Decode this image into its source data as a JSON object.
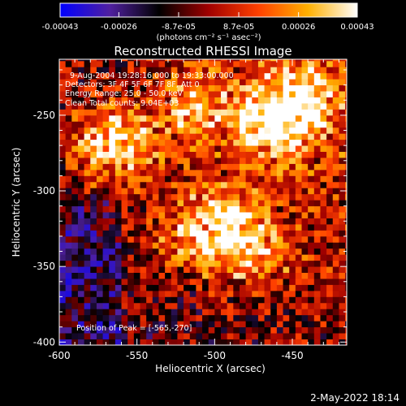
{
  "chart_data": {
    "type": "heatmap",
    "title": "Reconstructed RHESSI Image",
    "xlabel": "Heliocentric X (arcsec)",
    "ylabel": "Heliocentric Y (arcsec)",
    "xlim": [
      -600,
      -415
    ],
    "ylim": [
      -402,
      -213
    ],
    "x_ticks": [
      "-600",
      "-550",
      "-500",
      "-450"
    ],
    "y_ticks": [
      "-250",
      "-300",
      "-350",
      "-400"
    ],
    "x_tick_values": [
      -600,
      -550,
      -500,
      -450
    ],
    "y_tick_values": [
      -250,
      -300,
      -350,
      -400
    ],
    "colorbar": {
      "range": [
        -0.00043,
        0.00043
      ],
      "tick_labels": [
        "-0.00043",
        "-0.00026",
        "-8.7e-05",
        "8.7e-05",
        "0.00026",
        "0.00043"
      ],
      "tick_values": [
        -0.00043,
        -0.00026,
        -8.7e-05,
        8.7e-05,
        0.00026,
        0.00043
      ],
      "unit_label": "(photons cm⁻² s⁻¹ asec⁻²)",
      "colors": [
        "#0000ff",
        "#5020a0",
        "#000000",
        "#a00000",
        "#ff4000",
        "#ffb000",
        "#ffffff"
      ]
    },
    "annotations": [
      "9-Aug-2004 19:28:16.000 to 19:33:00.000",
      "Detectors: 3F 4F 5F 6F 7F 8F, Att 0",
      "Energy Range: 25.0 - 50.0 keV",
      "Clean    Total counts: 9.04E+03"
    ],
    "peak_label": "Position of Peak = [-565,-270]",
    "peak": {
      "x": -565,
      "y": -270
    },
    "bright_regions": [
      {
        "x": -565,
        "y": -270,
        "level": 0.95
      },
      {
        "x": -495,
        "y": -325,
        "level": 0.9
      },
      {
        "x": -460,
        "y": -255,
        "level": 0.85
      },
      {
        "x": -445,
        "y": -235,
        "level": 0.75
      },
      {
        "x": -510,
        "y": -245,
        "level": 0.7
      },
      {
        "x": -530,
        "y": -330,
        "level": 0.55
      },
      {
        "x": -475,
        "y": -345,
        "level": 0.6
      }
    ]
  },
  "footer": {
    "timestamp": "2-May-2022 18:14"
  }
}
